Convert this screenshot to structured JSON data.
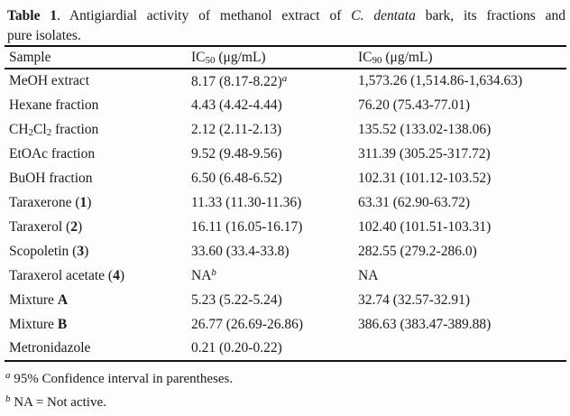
{
  "page": {
    "colors": {
      "background": "#fdfdfd",
      "ink": "#1b1b1b",
      "rule": "#111111"
    }
  },
  "caption": {
    "line1": [
      {
        "t": "Table 1",
        "b": true
      },
      {
        "t": ". Antigiardial activity of methanol extract of "
      },
      {
        "t": "C. dentata",
        "i": true
      },
      {
        "t": " bark, its fractions and"
      }
    ],
    "line2": [
      {
        "t": "pure isolates."
      }
    ]
  },
  "table": {
    "headers": [
      [
        {
          "t": "Sample"
        }
      ],
      [
        {
          "t": "IC"
        },
        {
          "t": "50",
          "sub": true
        },
        {
          "t": " (μg/mL)"
        }
      ],
      [
        {
          "t": "IC"
        },
        {
          "t": "90",
          "sub": true
        },
        {
          "t": " (μg/mL)"
        }
      ]
    ],
    "rows": [
      {
        "sample": [
          {
            "t": "MeOH extract"
          }
        ],
        "ic50": [
          {
            "t": "8.17 (8.17-8.22)"
          },
          {
            "t": "a",
            "sup": true,
            "i": true
          }
        ],
        "ic90": [
          {
            "t": "1,573.26 (1,514.86-1,634.63)"
          }
        ]
      },
      {
        "sample": [
          {
            "t": "Hexane fraction"
          }
        ],
        "ic50": [
          {
            "t": "4.43 (4.42-4.44)"
          }
        ],
        "ic90": [
          {
            "t": "76.20 (75.43-77.01)"
          }
        ]
      },
      {
        "sample": [
          {
            "t": "CH"
          },
          {
            "t": "2",
            "sub": true
          },
          {
            "t": "Cl"
          },
          {
            "t": "2",
            "sub": true
          },
          {
            "t": " fraction"
          }
        ],
        "ic50": [
          {
            "t": "2.12 (2.11-2.13)"
          }
        ],
        "ic90": [
          {
            "t": "135.52 (133.02-138.06)"
          }
        ]
      },
      {
        "sample": [
          {
            "t": "EtOAc fraction"
          }
        ],
        "ic50": [
          {
            "t": "9.52 (9.48-9.56)"
          }
        ],
        "ic90": [
          {
            "t": "311.39 (305.25-317.72)"
          }
        ]
      },
      {
        "sample": [
          {
            "t": "BuOH fraction"
          }
        ],
        "ic50": [
          {
            "t": "6.50 (6.48-6.52)"
          }
        ],
        "ic90": [
          {
            "t": "102.31 (101.12-103.52)"
          }
        ]
      },
      {
        "sample": [
          {
            "t": "Taraxerone ("
          },
          {
            "t": "1",
            "b": true
          },
          {
            "t": ")"
          }
        ],
        "ic50": [
          {
            "t": "11.33 (11.30-11.36)"
          }
        ],
        "ic90": [
          {
            "t": "63.31 (62.90-63.72)"
          }
        ]
      },
      {
        "sample": [
          {
            "t": "Taraxerol ("
          },
          {
            "t": "2",
            "b": true
          },
          {
            "t": ")"
          }
        ],
        "ic50": [
          {
            "t": "16.11 (16.05-16.17)"
          }
        ],
        "ic90": [
          {
            "t": "102.40 (101.51-103.31)"
          }
        ]
      },
      {
        "sample": [
          {
            "t": "Scopoletin ("
          },
          {
            "t": "3",
            "b": true
          },
          {
            "t": ")"
          }
        ],
        "ic50": [
          {
            "t": "33.60 (33.4-33.8)"
          }
        ],
        "ic90": [
          {
            "t": "282.55 (279.2-286.0)"
          }
        ]
      },
      {
        "sample": [
          {
            "t": "Taraxerol acetate ("
          },
          {
            "t": "4",
            "b": true
          },
          {
            "t": ")"
          }
        ],
        "ic50": [
          {
            "t": "NA"
          },
          {
            "t": "b",
            "sup": true,
            "i": true
          }
        ],
        "ic90": [
          {
            "t": "NA"
          }
        ]
      },
      {
        "sample": [
          {
            "t": "Mixture "
          },
          {
            "t": "A",
            "b": true
          }
        ],
        "ic50": [
          {
            "t": "5.23 (5.22-5.24)"
          }
        ],
        "ic90": [
          {
            "t": "32.74 (32.57-32.91)"
          }
        ]
      },
      {
        "sample": [
          {
            "t": "Mixture "
          },
          {
            "t": "B",
            "b": true
          }
        ],
        "ic50": [
          {
            "t": "26.77 (26.69-26.86)"
          }
        ],
        "ic90": [
          {
            "t": "386.63 (383.47-389.88)"
          }
        ]
      },
      {
        "sample": [
          {
            "t": "Metronidazole"
          }
        ],
        "ic50": [
          {
            "t": "0.21 (0.20-0.22)"
          }
        ],
        "ic90": []
      }
    ]
  },
  "footnotes": [
    [
      {
        "t": "a",
        "sup": true,
        "i": true
      },
      {
        "t": " 95% Confidence interval in parentheses."
      }
    ],
    [
      {
        "t": "b",
        "sup": true,
        "i": true
      },
      {
        "t": " NA = Not active."
      }
    ]
  ]
}
